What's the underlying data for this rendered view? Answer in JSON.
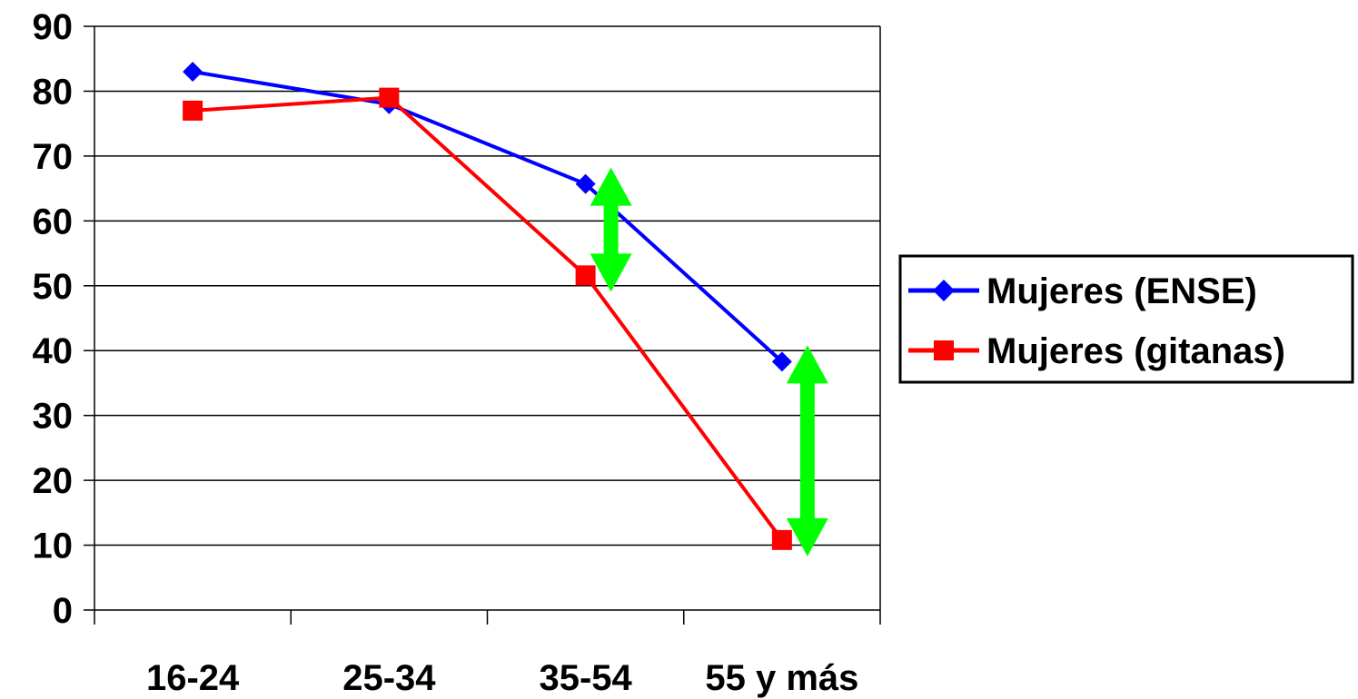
{
  "chart_data": {
    "type": "line",
    "categories": [
      "16-24",
      "25-34",
      "35-54",
      "55 y más"
    ],
    "series": [
      {
        "name": "Mujeres (ENSE)",
        "values": [
          83,
          78,
          65.7,
          38.3
        ],
        "color": "#0000ff",
        "marker": "diamond"
      },
      {
        "name": "Mujeres (gitanas)",
        "values": [
          77,
          79,
          51.6,
          10.8
        ],
        "color": "#ff0000",
        "marker": "square"
      }
    ],
    "ylim": [
      0,
      90
    ],
    "yticks": [
      "0",
      "10",
      "20",
      "30",
      "40",
      "50",
      "60",
      "70",
      "80",
      "90"
    ],
    "grid": true,
    "legend_position": "right",
    "annotations": [
      {
        "type": "double-arrow",
        "category": "35-54",
        "from": 51.6,
        "to": 65.7,
        "color": "#00ff00"
      },
      {
        "type": "double-arrow",
        "category": "55 y más",
        "from": 10.8,
        "to": 38.3,
        "color": "#00ff00"
      }
    ]
  }
}
